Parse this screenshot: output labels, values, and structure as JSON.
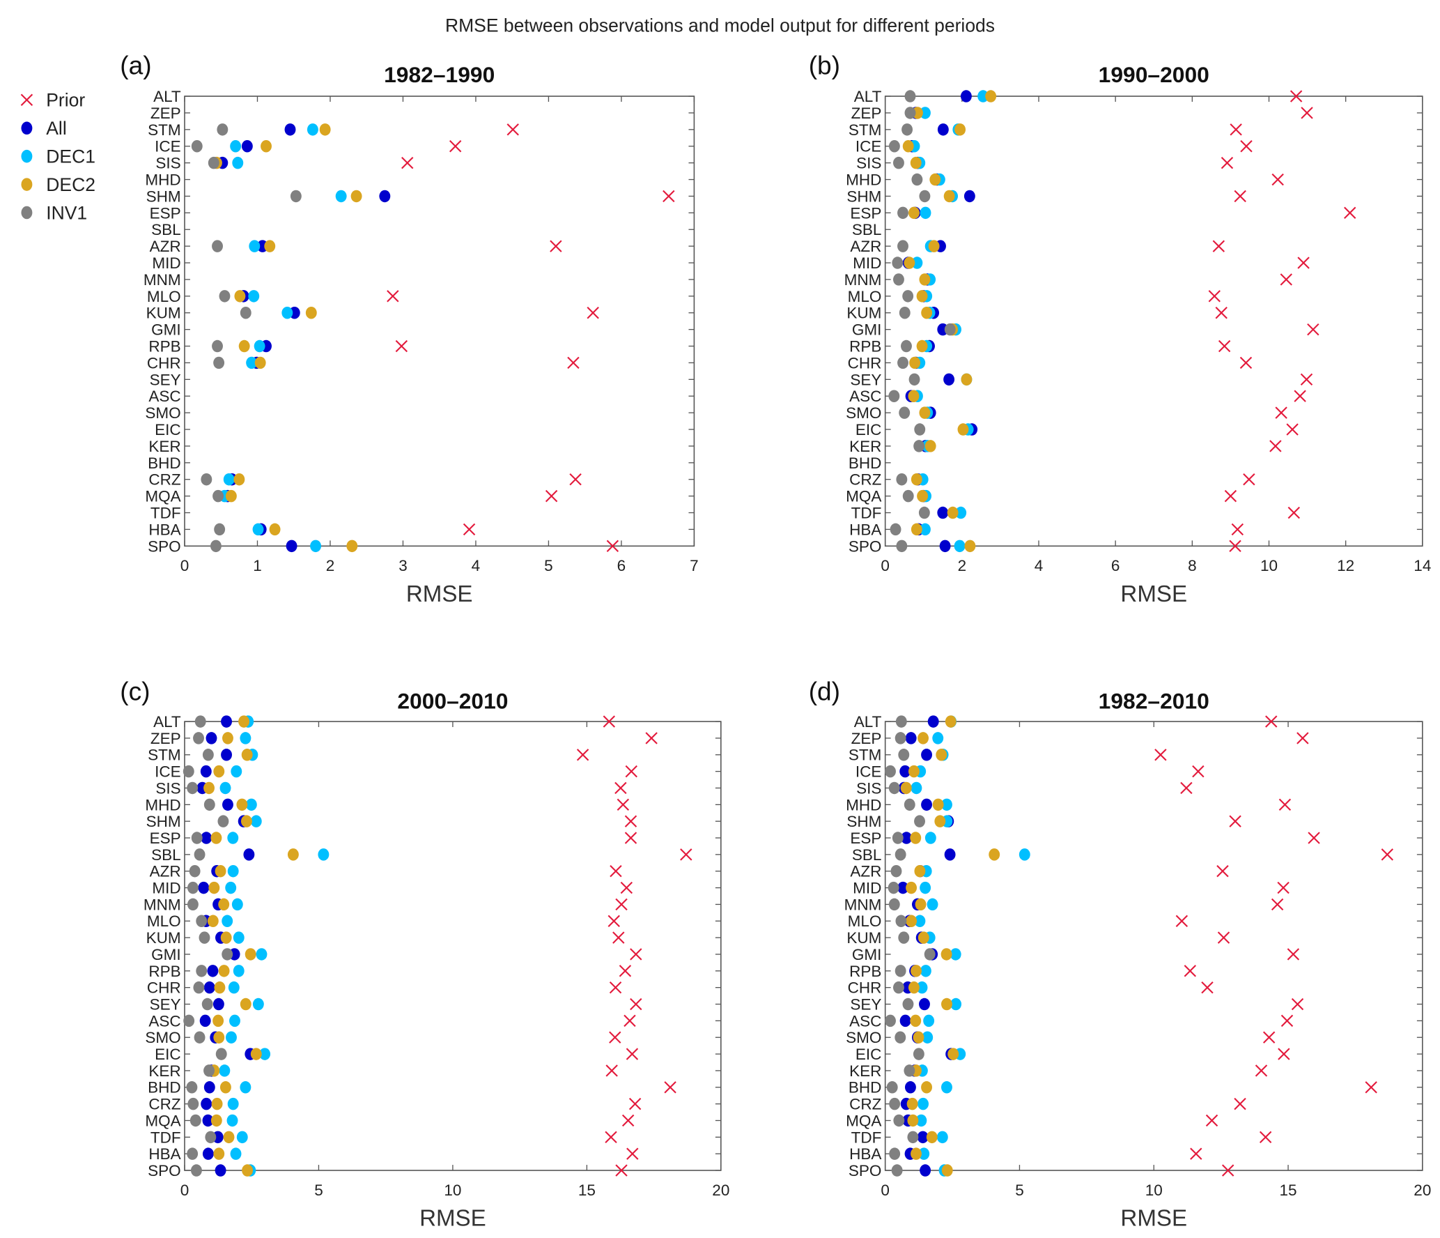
{
  "figure_title": "RMSE between observations and model output for different periods",
  "legend": [
    {
      "name": "Prior",
      "color": "#e31a3c",
      "marker": "x"
    },
    {
      "name": "All",
      "color": "#0000cd",
      "marker": "dot"
    },
    {
      "name": "DEC1",
      "color": "#00bfff",
      "marker": "dot"
    },
    {
      "name": "DEC2",
      "color": "#daa520",
      "marker": "dot"
    },
    {
      "name": "INV1",
      "color": "#808080",
      "marker": "dot"
    }
  ],
  "chart_data": [
    {
      "type": "scatter",
      "panel": "(a)",
      "title": "1982–1990",
      "xlabel": "RMSE",
      "xlim": [
        0,
        7
      ],
      "xticks": [
        "0",
        "1",
        "2",
        "3",
        "4",
        "5",
        "6",
        "7"
      ],
      "categories": [
        "ALT",
        "ZEP",
        "STM",
        "ICE",
        "SIS",
        "MHD",
        "SHM",
        "ESP",
        "SBL",
        "AZR",
        "MID",
        "MNM",
        "MLO",
        "KUM",
        "GMI",
        "RPB",
        "CHR",
        "SEY",
        "ASC",
        "SMO",
        "EIC",
        "KER",
        "BHD",
        "CRZ",
        "MQA",
        "TDF",
        "HBA",
        "SPO"
      ],
      "series": [
        {
          "name": "Prior",
          "values": [
            null,
            null,
            4.51,
            3.72,
            3.06,
            null,
            6.65,
            null,
            null,
            5.1,
            null,
            null,
            2.86,
            5.61,
            null,
            2.98,
            5.34,
            null,
            null,
            null,
            null,
            null,
            null,
            5.37,
            5.04,
            null,
            3.91,
            5.88
          ]
        },
        {
          "name": "All",
          "values": [
            null,
            null,
            1.45,
            0.86,
            0.52,
            null,
            2.75,
            null,
            null,
            1.07,
            null,
            null,
            0.81,
            1.51,
            null,
            1.12,
            0.99,
            null,
            null,
            null,
            null,
            null,
            null,
            0.65,
            0.59,
            null,
            1.05,
            1.47
          ]
        },
        {
          "name": "DEC1",
          "values": [
            null,
            null,
            1.76,
            0.7,
            0.73,
            null,
            2.15,
            null,
            null,
            0.96,
            null,
            null,
            0.95,
            1.41,
            null,
            1.03,
            0.92,
            null,
            null,
            null,
            null,
            null,
            null,
            0.61,
            0.55,
            null,
            1.01,
            1.8
          ]
        },
        {
          "name": "DEC2",
          "values": [
            null,
            null,
            1.93,
            1.12,
            0.44,
            null,
            2.36,
            null,
            null,
            1.17,
            null,
            null,
            0.76,
            1.74,
            null,
            0.82,
            1.04,
            null,
            null,
            null,
            null,
            null,
            null,
            0.75,
            0.64,
            null,
            1.24,
            2.3
          ]
        },
        {
          "name": "INV1",
          "values": [
            null,
            null,
            0.52,
            0.17,
            0.4,
            null,
            1.53,
            null,
            null,
            0.45,
            null,
            null,
            0.55,
            0.84,
            null,
            0.45,
            0.47,
            null,
            null,
            null,
            null,
            null,
            null,
            0.3,
            0.46,
            null,
            0.48,
            0.43
          ]
        }
      ]
    },
    {
      "type": "scatter",
      "panel": "(b)",
      "title": "1990–2000",
      "xlabel": "RMSE",
      "xlim": [
        0,
        14
      ],
      "xticks": [
        "0",
        "2",
        "4",
        "6",
        "8",
        "10",
        "12",
        "14"
      ],
      "categories": [
        "ALT",
        "ZEP",
        "STM",
        "ICE",
        "SIS",
        "MHD",
        "SHM",
        "ESP",
        "SBL",
        "AZR",
        "MID",
        "MNM",
        "MLO",
        "KUM",
        "GMI",
        "RPB",
        "CHR",
        "SEY",
        "ASC",
        "SMO",
        "EIC",
        "KER",
        "BHD",
        "CRZ",
        "MQA",
        "TDF",
        "HBA",
        "SPO"
      ],
      "series": [
        {
          "name": "Prior",
          "values": [
            10.71,
            10.99,
            9.14,
            9.41,
            8.91,
            10.23,
            9.25,
            12.11,
            null,
            8.69,
            10.9,
            10.45,
            8.58,
            8.76,
            11.15,
            8.84,
            9.4,
            10.98,
            10.81,
            10.32,
            10.61,
            10.17,
            null,
            9.48,
            9.0,
            10.65,
            9.18,
            9.12
          ]
        },
        {
          "name": "All",
          "values": [
            2.11,
            0.8,
            1.51,
            0.7,
            0.85,
            1.35,
            2.2,
            0.78,
            null,
            1.44,
            0.6,
            1.1,
            1.0,
            1.26,
            1.5,
            1.15,
            0.8,
            1.66,
            0.67,
            1.18,
            2.26,
            1.05,
            null,
            0.85,
            1.0,
            1.5,
            0.87,
            1.56
          ]
        },
        {
          "name": "DEC1",
          "values": [
            2.55,
            1.04,
            1.9,
            0.76,
            0.9,
            1.42,
            1.75,
            1.05,
            null,
            1.18,
            0.83,
            1.17,
            1.08,
            1.16,
            1.84,
            1.08,
            0.9,
            2.12,
            0.84,
            1.1,
            2.16,
            1.1,
            null,
            0.98,
            1.06,
            1.97,
            1.04,
            1.94
          ]
        },
        {
          "name": "DEC2",
          "values": [
            2.75,
            0.84,
            1.95,
            0.6,
            0.8,
            1.3,
            1.67,
            0.75,
            null,
            1.27,
            0.63,
            1.03,
            0.96,
            1.08,
            1.75,
            0.96,
            0.77,
            2.12,
            0.74,
            1.03,
            2.03,
            1.18,
            null,
            0.82,
            0.97,
            1.76,
            0.82,
            2.21
          ]
        },
        {
          "name": "INV1",
          "values": [
            0.65,
            0.65,
            0.57,
            0.24,
            0.35,
            0.83,
            1.03,
            0.46,
            null,
            0.46,
            0.32,
            0.35,
            0.59,
            0.51,
            1.69,
            0.55,
            0.46,
            0.76,
            0.23,
            0.5,
            0.9,
            0.88,
            null,
            0.43,
            0.6,
            1.02,
            0.27,
            0.43
          ]
        }
      ]
    },
    {
      "type": "scatter",
      "panel": "(c)",
      "title": "2000–2010",
      "xlabel": "RMSE",
      "xlim": [
        0,
        20
      ],
      "xticks": [
        "0",
        "5",
        "10",
        "15",
        "20"
      ],
      "categories": [
        "ALT",
        "ZEP",
        "STM",
        "ICE",
        "SIS",
        "MHD",
        "SHM",
        "ESP",
        "SBL",
        "AZR",
        "MID",
        "MNM",
        "MLO",
        "KUM",
        "GMI",
        "RPB",
        "CHR",
        "SEY",
        "ASC",
        "SMO",
        "EIC",
        "KER",
        "BHD",
        "CRZ",
        "MQA",
        "TDF",
        "HBA",
        "SPO"
      ],
      "series": [
        {
          "name": "Prior",
          "values": [
            15.83,
            17.41,
            14.85,
            16.66,
            16.26,
            16.35,
            16.64,
            16.64,
            18.7,
            16.08,
            16.48,
            16.29,
            16.01,
            16.18,
            16.83,
            16.43,
            16.07,
            16.83,
            16.6,
            16.05,
            16.69,
            15.93,
            18.11,
            16.8,
            16.54,
            15.9,
            16.7,
            16.29
          ]
        },
        {
          "name": "All",
          "values": [
            1.56,
            1.0,
            1.56,
            0.8,
            0.66,
            1.61,
            2.2,
            0.81,
            2.4,
            1.2,
            0.71,
            1.25,
            0.8,
            1.35,
            1.86,
            1.05,
            0.93,
            1.27,
            0.77,
            1.15,
            2.45,
            1.0,
            0.93,
            0.81,
            0.87,
            1.24,
            0.88,
            1.34
          ]
        },
        {
          "name": "DEC1",
          "values": [
            2.37,
            2.27,
            2.53,
            1.93,
            1.52,
            2.49,
            2.67,
            1.8,
            5.18,
            1.81,
            1.72,
            1.97,
            1.59,
            2.02,
            2.87,
            2.02,
            1.84,
            2.75,
            1.87,
            1.74,
            2.99,
            1.49,
            2.27,
            1.81,
            1.78,
            2.15,
            1.91,
            2.45
          ]
        },
        {
          "name": "DEC2",
          "values": [
            2.21,
            1.61,
            2.33,
            1.28,
            0.91,
            2.14,
            2.31,
            1.18,
            4.05,
            1.34,
            1.1,
            1.46,
            1.06,
            1.55,
            2.46,
            1.47,
            1.31,
            2.28,
            1.25,
            1.28,
            2.67,
            1.1,
            1.53,
            1.21,
            1.19,
            1.65,
            1.28,
            2.34
          ]
        },
        {
          "name": "INV1",
          "values": [
            0.59,
            0.52,
            0.88,
            0.15,
            0.29,
            0.93,
            1.44,
            0.46,
            0.56,
            0.38,
            0.31,
            0.31,
            0.63,
            0.74,
            1.59,
            0.63,
            0.53,
            0.85,
            0.16,
            0.56,
            1.37,
            0.91,
            0.27,
            0.32,
            0.41,
            0.97,
            0.29,
            0.44
          ]
        }
      ]
    },
    {
      "type": "scatter",
      "panel": "(d)",
      "title": "1982–2010",
      "xlabel": "RMSE",
      "xlim": [
        0,
        20
      ],
      "xticks": [
        "0",
        "5",
        "10",
        "15",
        "20"
      ],
      "categories": [
        "ALT",
        "ZEP",
        "STM",
        "ICE",
        "SIS",
        "MHD",
        "SHM",
        "ESP",
        "SBL",
        "AZR",
        "MID",
        "MNM",
        "MLO",
        "KUM",
        "GMI",
        "RPB",
        "CHR",
        "SEY",
        "ASC",
        "SMO",
        "EIC",
        "KER",
        "BHD",
        "CRZ",
        "MQA",
        "TDF",
        "HBA",
        "SPO"
      ],
      "series": [
        {
          "name": "Prior",
          "values": [
            14.37,
            15.54,
            10.25,
            11.65,
            11.21,
            14.88,
            13.03,
            15.96,
            18.69,
            12.56,
            14.82,
            14.6,
            11.04,
            12.6,
            15.19,
            11.35,
            11.99,
            15.35,
            14.96,
            14.29,
            14.84,
            14.0,
            18.09,
            13.21,
            12.16,
            14.16,
            11.57,
            12.76
          ]
        },
        {
          "name": "All",
          "values": [
            1.79,
            0.96,
            1.54,
            0.74,
            0.7,
            1.54,
            2.35,
            0.79,
            2.41,
            1.3,
            0.66,
            1.2,
            0.9,
            1.35,
            1.75,
            1.1,
            0.84,
            1.46,
            0.75,
            1.2,
            2.45,
            1.1,
            0.94,
            0.78,
            0.85,
            1.4,
            0.93,
            1.49
          ]
        },
        {
          "name": "DEC1",
          "values": [
            2.45,
            1.96,
            2.15,
            1.31,
            1.16,
            2.29,
            2.3,
            1.69,
            5.19,
            1.53,
            1.49,
            1.76,
            1.29,
            1.66,
            2.62,
            1.51,
            1.37,
            2.63,
            1.62,
            1.57,
            2.79,
            1.38,
            2.29,
            1.41,
            1.34,
            2.13,
            1.44,
            2.2
          ]
        },
        {
          "name": "DEC2",
          "values": [
            2.44,
            1.41,
            2.09,
            1.07,
            0.78,
            1.97,
            2.04,
            1.13,
            4.06,
            1.29,
            0.97,
            1.32,
            0.97,
            1.43,
            2.28,
            1.15,
            1.07,
            2.29,
            1.13,
            1.24,
            2.53,
            1.15,
            1.54,
            1.01,
            1.03,
            1.74,
            1.15,
            2.31
          ]
        },
        {
          "name": "INV1",
          "values": [
            0.6,
            0.57,
            0.69,
            0.19,
            0.34,
            0.91,
            1.28,
            0.47,
            0.57,
            0.41,
            0.31,
            0.34,
            0.59,
            0.69,
            1.66,
            0.57,
            0.5,
            0.85,
            0.19,
            0.56,
            1.25,
            0.9,
            0.26,
            0.35,
            0.51,
            1.03,
            0.35,
            0.44
          ]
        }
      ]
    }
  ]
}
